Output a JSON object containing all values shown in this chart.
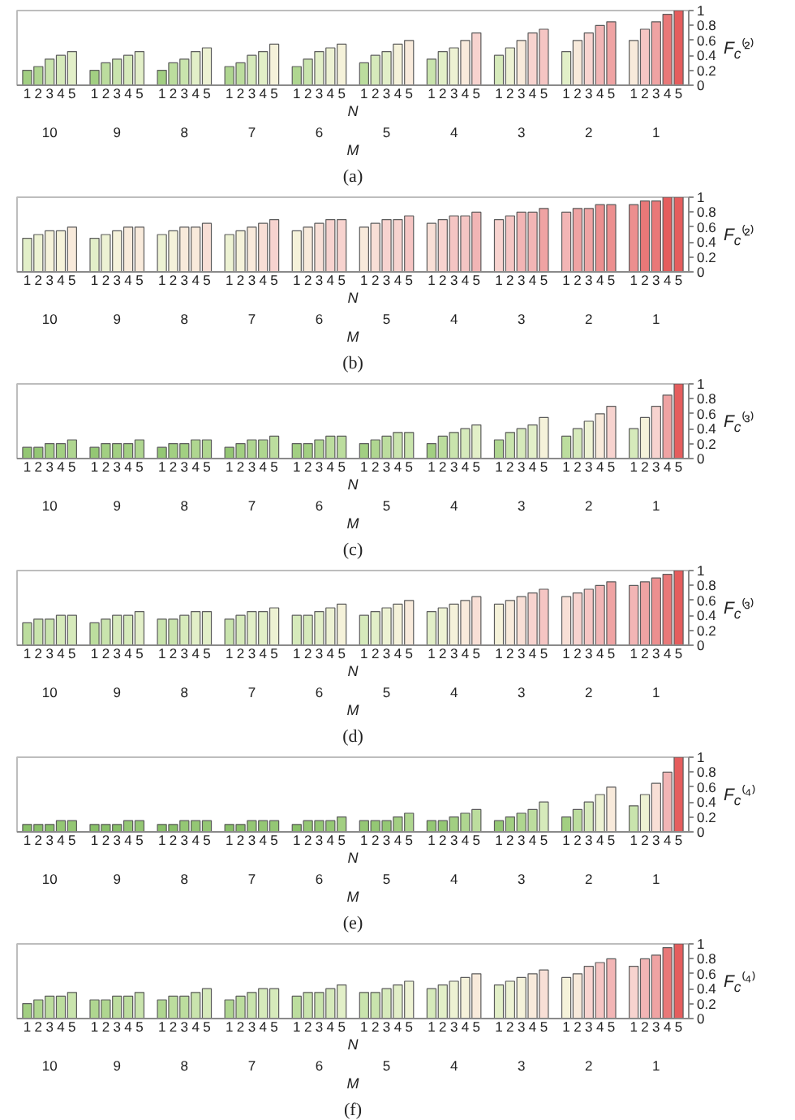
{
  "chart_data": [
    {
      "type": "bar",
      "categories": [
        "10",
        "9",
        "8",
        "7",
        "6",
        "5",
        "4",
        "3",
        "2",
        "1"
      ],
      "xlabel": "M",
      "legend_title": "N",
      "ylabel": "F$_{c}$⁽²⁾",
      "ylim": [
        0,
        1
      ],
      "yticks": [
        0,
        0.2,
        0.4,
        0.6,
        0.8,
        1
      ],
      "annotations": [
        "(a)"
      ],
      "series": [
        {
          "name": "1",
          "values": [
            0.2,
            0.2,
            0.2,
            0.25,
            0.25,
            0.3,
            0.35,
            0.4,
            0.45,
            0.6
          ],
          "colors": [
            "#a2cf82",
            "#a2cf82",
            "#a2cf82",
            "#afd690",
            "#afd690",
            "#bcdd9e",
            "#c9e4ad",
            "#d6eabb",
            "#e2efc8",
            "#f8eadb"
          ]
        },
        {
          "name": "2",
          "values": [
            0.25,
            0.3,
            0.3,
            0.3,
            0.35,
            0.4,
            0.45,
            0.5,
            0.6,
            0.75
          ],
          "colors": [
            "#afd690",
            "#bcdd9e",
            "#bcdd9e",
            "#bcdd9e",
            "#c9e4ad",
            "#d6eabb",
            "#e2efc8",
            "#edf2d3",
            "#f8eadb",
            "#f5c5c3"
          ]
        },
        {
          "name": "3",
          "values": [
            0.35,
            0.35,
            0.35,
            0.4,
            0.45,
            0.45,
            0.5,
            0.6,
            0.7,
            0.85
          ],
          "colors": [
            "#c9e4ad",
            "#c9e4ad",
            "#c9e4ad",
            "#d6eabb",
            "#e2efc8",
            "#e2efc8",
            "#edf2d3",
            "#f8eadb",
            "#f7d3cf",
            "#efa3a3"
          ]
        },
        {
          "name": "4",
          "values": [
            0.4,
            0.4,
            0.45,
            0.45,
            0.5,
            0.55,
            0.6,
            0.7,
            0.8,
            0.95
          ],
          "colors": [
            "#d6eabb",
            "#d6eabb",
            "#e2efc8",
            "#e2efc8",
            "#edf2d3",
            "#f5f2da",
            "#f8eadb",
            "#f7d3cf",
            "#f2b5b5",
            "#e97878"
          ]
        },
        {
          "name": "5",
          "values": [
            0.45,
            0.45,
            0.5,
            0.55,
            0.55,
            0.6,
            0.7,
            0.75,
            0.85,
            1.0
          ],
          "colors": [
            "#e2efc8",
            "#e2efc8",
            "#edf2d3",
            "#f5f2da",
            "#f5f2da",
            "#f8eadb",
            "#f7d3cf",
            "#f5c5c3",
            "#efa3a3",
            "#e55d5d"
          ]
        }
      ]
    },
    {
      "type": "bar",
      "categories": [
        "10",
        "9",
        "8",
        "7",
        "6",
        "5",
        "4",
        "3",
        "2",
        "1"
      ],
      "xlabel": "M",
      "legend_title": "N",
      "ylabel": "F$_{c}$⁽²⁾",
      "ylim": [
        0,
        1
      ],
      "yticks": [
        0,
        0.2,
        0.4,
        0.6,
        0.8,
        1
      ],
      "annotations": [
        "(b)"
      ],
      "series": [
        {
          "name": "1",
          "values": [
            0.45,
            0.45,
            0.5,
            0.5,
            0.55,
            0.6,
            0.65,
            0.7,
            0.8,
            0.9
          ],
          "colors": [
            "#e2efc8",
            "#e2efc8",
            "#edf2d3",
            "#edf2d3",
            "#f5f2da",
            "#f8eadb",
            "#f8dfd6",
            "#f7d3cf",
            "#f2b5b5",
            "#ec8f8f"
          ]
        },
        {
          "name": "2",
          "values": [
            0.5,
            0.5,
            0.55,
            0.55,
            0.6,
            0.65,
            0.7,
            0.75,
            0.85,
            0.95
          ],
          "colors": [
            "#edf2d3",
            "#edf2d3",
            "#f5f2da",
            "#f5f2da",
            "#f8eadb",
            "#f8dfd6",
            "#f7d3cf",
            "#f5c5c3",
            "#efa3a3",
            "#e97878"
          ]
        },
        {
          "name": "3",
          "values": [
            0.55,
            0.55,
            0.6,
            0.6,
            0.65,
            0.7,
            0.75,
            0.8,
            0.85,
            0.95
          ],
          "colors": [
            "#f5f2da",
            "#f5f2da",
            "#f8eadb",
            "#f8eadb",
            "#f8dfd6",
            "#f7d3cf",
            "#f5c5c3",
            "#f2b5b5",
            "#efa3a3",
            "#e97878"
          ]
        },
        {
          "name": "4",
          "values": [
            0.55,
            0.6,
            0.6,
            0.65,
            0.7,
            0.7,
            0.75,
            0.8,
            0.9,
            1.0
          ],
          "colors": [
            "#f5f2da",
            "#f8eadb",
            "#f8eadb",
            "#f8dfd6",
            "#f7d3cf",
            "#f7d3cf",
            "#f5c5c3",
            "#f2b5b5",
            "#ec8f8f",
            "#e55d5d"
          ]
        },
        {
          "name": "5",
          "values": [
            0.6,
            0.6,
            0.65,
            0.7,
            0.7,
            0.75,
            0.8,
            0.85,
            0.9,
            1.0
          ],
          "colors": [
            "#f8eadb",
            "#f8eadb",
            "#f8dfd6",
            "#f7d3cf",
            "#f7d3cf",
            "#f5c5c3",
            "#f2b5b5",
            "#efa3a3",
            "#ec8f8f",
            "#e55d5d"
          ]
        }
      ]
    },
    {
      "type": "bar",
      "categories": [
        "10",
        "9",
        "8",
        "7",
        "6",
        "5",
        "4",
        "3",
        "2",
        "1"
      ],
      "xlabel": "M",
      "legend_title": "N",
      "ylabel": "F$_{c}$⁽³⁾",
      "ylim": [
        0,
        1
      ],
      "yticks": [
        0,
        0.2,
        0.4,
        0.6,
        0.8,
        1
      ],
      "annotations": [
        "(c)"
      ],
      "series": [
        {
          "name": "1",
          "values": [
            0.15,
            0.15,
            0.15,
            0.15,
            0.2,
            0.2,
            0.2,
            0.25,
            0.3,
            0.4
          ],
          "colors": [
            "#94c774",
            "#94c774",
            "#94c774",
            "#94c774",
            "#a2cf82",
            "#a2cf82",
            "#a2cf82",
            "#afd690",
            "#bcdd9e",
            "#d6eabb"
          ]
        },
        {
          "name": "2",
          "values": [
            0.15,
            0.2,
            0.2,
            0.2,
            0.2,
            0.25,
            0.3,
            0.35,
            0.4,
            0.55
          ],
          "colors": [
            "#94c774",
            "#a2cf82",
            "#a2cf82",
            "#a2cf82",
            "#a2cf82",
            "#afd690",
            "#bcdd9e",
            "#c9e4ad",
            "#d6eabb",
            "#f5f2da"
          ]
        },
        {
          "name": "3",
          "values": [
            0.2,
            0.2,
            0.2,
            0.25,
            0.25,
            0.3,
            0.35,
            0.4,
            0.5,
            0.7
          ],
          "colors": [
            "#a2cf82",
            "#a2cf82",
            "#a2cf82",
            "#afd690",
            "#afd690",
            "#bcdd9e",
            "#c9e4ad",
            "#d6eabb",
            "#edf2d3",
            "#f7d3cf"
          ]
        },
        {
          "name": "4",
          "values": [
            0.2,
            0.2,
            0.25,
            0.25,
            0.3,
            0.35,
            0.4,
            0.45,
            0.6,
            0.85
          ],
          "colors": [
            "#a2cf82",
            "#a2cf82",
            "#afd690",
            "#afd690",
            "#bcdd9e",
            "#c9e4ad",
            "#d6eabb",
            "#e2efc8",
            "#f8eadb",
            "#efa3a3"
          ]
        },
        {
          "name": "5",
          "values": [
            0.25,
            0.25,
            0.25,
            0.3,
            0.3,
            0.35,
            0.45,
            0.55,
            0.7,
            1.0
          ],
          "colors": [
            "#afd690",
            "#afd690",
            "#afd690",
            "#bcdd9e",
            "#bcdd9e",
            "#c9e4ad",
            "#e2efc8",
            "#f5f2da",
            "#f7d3cf",
            "#e55d5d"
          ]
        }
      ]
    },
    {
      "type": "bar",
      "categories": [
        "10",
        "9",
        "8",
        "7",
        "6",
        "5",
        "4",
        "3",
        "2",
        "1"
      ],
      "xlabel": "M",
      "legend_title": "N",
      "ylabel": "F$_{c}$⁽³⁾",
      "ylim": [
        0,
        1
      ],
      "yticks": [
        0,
        0.2,
        0.4,
        0.6,
        0.8,
        1
      ],
      "annotations": [
        "(d)"
      ],
      "series": [
        {
          "name": "1",
          "values": [
            0.3,
            0.3,
            0.35,
            0.35,
            0.4,
            0.4,
            0.45,
            0.55,
            0.65,
            0.8
          ],
          "colors": [
            "#bcdd9e",
            "#bcdd9e",
            "#c9e4ad",
            "#c9e4ad",
            "#d6eabb",
            "#d6eabb",
            "#e2efc8",
            "#f5f2da",
            "#f8dfd6",
            "#f2b5b5"
          ]
        },
        {
          "name": "2",
          "values": [
            0.35,
            0.35,
            0.35,
            0.4,
            0.4,
            0.45,
            0.5,
            0.6,
            0.7,
            0.85
          ],
          "colors": [
            "#c9e4ad",
            "#c9e4ad",
            "#c9e4ad",
            "#d6eabb",
            "#d6eabb",
            "#e2efc8",
            "#edf2d3",
            "#f8eadb",
            "#f7d3cf",
            "#efa3a3"
          ]
        },
        {
          "name": "3",
          "values": [
            0.35,
            0.4,
            0.4,
            0.45,
            0.45,
            0.5,
            0.55,
            0.65,
            0.75,
            0.9
          ],
          "colors": [
            "#c9e4ad",
            "#d6eabb",
            "#d6eabb",
            "#e2efc8",
            "#e2efc8",
            "#edf2d3",
            "#f5f2da",
            "#f8dfd6",
            "#f5c5c3",
            "#ec8f8f"
          ]
        },
        {
          "name": "4",
          "values": [
            0.4,
            0.4,
            0.45,
            0.45,
            0.5,
            0.55,
            0.6,
            0.7,
            0.8,
            0.95
          ],
          "colors": [
            "#d6eabb",
            "#d6eabb",
            "#e2efc8",
            "#e2efc8",
            "#edf2d3",
            "#f5f2da",
            "#f8eadb",
            "#f7d3cf",
            "#f2b5b5",
            "#e97878"
          ]
        },
        {
          "name": "5",
          "values": [
            0.4,
            0.45,
            0.45,
            0.5,
            0.55,
            0.6,
            0.65,
            0.75,
            0.85,
            1.0
          ],
          "colors": [
            "#d6eabb",
            "#e2efc8",
            "#e2efc8",
            "#edf2d3",
            "#f5f2da",
            "#f8eadb",
            "#f8dfd6",
            "#f5c5c3",
            "#efa3a3",
            "#e55d5d"
          ]
        }
      ]
    },
    {
      "type": "bar",
      "categories": [
        "10",
        "9",
        "8",
        "7",
        "6",
        "5",
        "4",
        "3",
        "2",
        "1"
      ],
      "xlabel": "M",
      "legend_title": "N",
      "ylabel": "F$_{c}$⁽⁴⁾",
      "ylim": [
        0,
        1
      ],
      "yticks": [
        0,
        0.2,
        0.4,
        0.6,
        0.8,
        1
      ],
      "annotations": [
        "(e)"
      ],
      "series": [
        {
          "name": "1",
          "values": [
            0.1,
            0.1,
            0.1,
            0.1,
            0.1,
            0.15,
            0.15,
            0.15,
            0.2,
            0.35
          ],
          "colors": [
            "#88c068",
            "#88c068",
            "#88c068",
            "#88c068",
            "#88c068",
            "#94c774",
            "#94c774",
            "#94c774",
            "#a2cf82",
            "#c9e4ad"
          ]
        },
        {
          "name": "2",
          "values": [
            0.1,
            0.1,
            0.1,
            0.1,
            0.15,
            0.15,
            0.15,
            0.2,
            0.3,
            0.5
          ],
          "colors": [
            "#88c068",
            "#88c068",
            "#88c068",
            "#88c068",
            "#94c774",
            "#94c774",
            "#94c774",
            "#a2cf82",
            "#bcdd9e",
            "#edf2d3"
          ]
        },
        {
          "name": "3",
          "values": [
            0.1,
            0.1,
            0.15,
            0.15,
            0.15,
            0.15,
            0.2,
            0.25,
            0.4,
            0.65
          ],
          "colors": [
            "#88c068",
            "#88c068",
            "#94c774",
            "#94c774",
            "#94c774",
            "#94c774",
            "#a2cf82",
            "#afd690",
            "#d6eabb",
            "#f8dfd6"
          ]
        },
        {
          "name": "4",
          "values": [
            0.15,
            0.15,
            0.15,
            0.15,
            0.15,
            0.2,
            0.25,
            0.3,
            0.5,
            0.8
          ],
          "colors": [
            "#94c774",
            "#94c774",
            "#94c774",
            "#94c774",
            "#94c774",
            "#a2cf82",
            "#afd690",
            "#bcdd9e",
            "#edf2d3",
            "#f2b5b5"
          ]
        },
        {
          "name": "5",
          "values": [
            0.15,
            0.15,
            0.15,
            0.15,
            0.2,
            0.25,
            0.3,
            0.4,
            0.6,
            1.0
          ],
          "colors": [
            "#94c774",
            "#94c774",
            "#94c774",
            "#94c774",
            "#a2cf82",
            "#afd690",
            "#bcdd9e",
            "#d6eabb",
            "#f8eadb",
            "#e55d5d"
          ]
        }
      ]
    },
    {
      "type": "bar",
      "categories": [
        "10",
        "9",
        "8",
        "7",
        "6",
        "5",
        "4",
        "3",
        "2",
        "1"
      ],
      "xlabel": "M",
      "legend_title": "N",
      "ylabel": "F$_{c}$⁽⁴⁾",
      "ylim": [
        0,
        1
      ],
      "yticks": [
        0,
        0.2,
        0.4,
        0.6,
        0.8,
        1
      ],
      "annotations": [
        "(f)"
      ],
      "series": [
        {
          "name": "1",
          "values": [
            0.2,
            0.25,
            0.25,
            0.25,
            0.3,
            0.35,
            0.4,
            0.45,
            0.55,
            0.7
          ],
          "colors": [
            "#a2cf82",
            "#afd690",
            "#afd690",
            "#afd690",
            "#bcdd9e",
            "#c9e4ad",
            "#d6eabb",
            "#e2efc8",
            "#f5f2da",
            "#f7d3cf"
          ]
        },
        {
          "name": "2",
          "values": [
            0.25,
            0.25,
            0.3,
            0.3,
            0.35,
            0.35,
            0.45,
            0.5,
            0.6,
            0.8
          ],
          "colors": [
            "#afd690",
            "#afd690",
            "#bcdd9e",
            "#bcdd9e",
            "#c9e4ad",
            "#c9e4ad",
            "#e2efc8",
            "#edf2d3",
            "#f8eadb",
            "#f2b5b5"
          ]
        },
        {
          "name": "3",
          "values": [
            0.3,
            0.3,
            0.3,
            0.35,
            0.35,
            0.4,
            0.5,
            0.55,
            0.7,
            0.85
          ],
          "colors": [
            "#bcdd9e",
            "#bcdd9e",
            "#bcdd9e",
            "#c9e4ad",
            "#c9e4ad",
            "#d6eabb",
            "#edf2d3",
            "#f5f2da",
            "#f7d3cf",
            "#efa3a3"
          ]
        },
        {
          "name": "4",
          "values": [
            0.3,
            0.3,
            0.35,
            0.4,
            0.4,
            0.45,
            0.55,
            0.6,
            0.75,
            0.95
          ],
          "colors": [
            "#bcdd9e",
            "#bcdd9e",
            "#c9e4ad",
            "#d6eabb",
            "#d6eabb",
            "#e2efc8",
            "#f5f2da",
            "#f8eadb",
            "#f5c5c3",
            "#e97878"
          ]
        },
        {
          "name": "5",
          "values": [
            0.35,
            0.35,
            0.4,
            0.4,
            0.45,
            0.5,
            0.6,
            0.65,
            0.8,
            1.0
          ],
          "colors": [
            "#c9e4ad",
            "#c9e4ad",
            "#d6eabb",
            "#d6eabb",
            "#e2efc8",
            "#edf2d3",
            "#f8eadb",
            "#f8dfd6",
            "#f2b5b5",
            "#e55d5d"
          ]
        }
      ]
    }
  ]
}
